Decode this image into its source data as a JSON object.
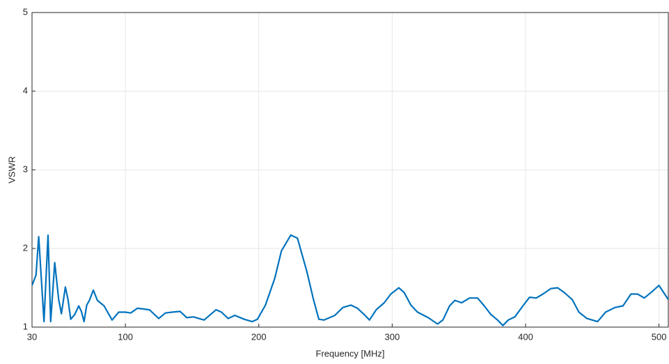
{
  "chart_data": {
    "type": "line",
    "xlabel": "Frequency [MHz]",
    "ylabel": "VSWR",
    "x": [
      30,
      33,
      35,
      39,
      42,
      44,
      47,
      50,
      52,
      55,
      57,
      59,
      62,
      65,
      67,
      69,
      71,
      73,
      76,
      79,
      84,
      90,
      95,
      100,
      104,
      109,
      118,
      125,
      130,
      135,
      141,
      146,
      151,
      159,
      168,
      172,
      177,
      182,
      189,
      195,
      199,
      205,
      212,
      217,
      224,
      229,
      236,
      241,
      245,
      249,
      257,
      263,
      269,
      274,
      279,
      283,
      288,
      294,
      299,
      305,
      309,
      314,
      319,
      327,
      334,
      338,
      343,
      347,
      352,
      358,
      364,
      369,
      374,
      379,
      383,
      387,
      392,
      398,
      403,
      408,
      413,
      419,
      424,
      429,
      435,
      440,
      446,
      454,
      460,
      467,
      473,
      479,
      484,
      489,
      494,
      500,
      507
    ],
    "series": [
      {
        "name": "VSWR",
        "color": "#0072bd",
        "values": [
          1.53,
          1.66,
          2.15,
          1.07,
          2.17,
          1.07,
          1.82,
          1.35,
          1.17,
          1.51,
          1.35,
          1.1,
          1.16,
          1.27,
          1.2,
          1.07,
          1.28,
          1.34,
          1.47,
          1.34,
          1.27,
          1.09,
          1.19,
          1.19,
          1.18,
          1.24,
          1.22,
          1.11,
          1.18,
          1.19,
          1.2,
          1.12,
          1.13,
          1.09,
          1.22,
          1.19,
          1.11,
          1.15,
          1.1,
          1.07,
          1.1,
          1.28,
          1.62,
          1.97,
          2.17,
          2.13,
          1.71,
          1.35,
          1.1,
          1.09,
          1.15,
          1.25,
          1.28,
          1.24,
          1.16,
          1.09,
          1.22,
          1.31,
          1.42,
          1.5,
          1.44,
          1.28,
          1.19,
          1.12,
          1.04,
          1.09,
          1.27,
          1.34,
          1.31,
          1.37,
          1.37,
          1.27,
          1.16,
          1.09,
          1.02,
          1.09,
          1.13,
          1.27,
          1.38,
          1.37,
          1.42,
          1.49,
          1.5,
          1.44,
          1.35,
          1.19,
          1.11,
          1.07,
          1.19,
          1.25,
          1.27,
          1.42,
          1.42,
          1.37,
          1.44,
          1.53,
          1.35
        ]
      }
    ],
    "xlim": [
      30,
      507
    ],
    "xticks": [
      30,
      100,
      200,
      300,
      400,
      500
    ],
    "ylim": [
      1,
      5
    ],
    "yticks": [
      1,
      2,
      3,
      4,
      5
    ],
    "grid": true
  }
}
